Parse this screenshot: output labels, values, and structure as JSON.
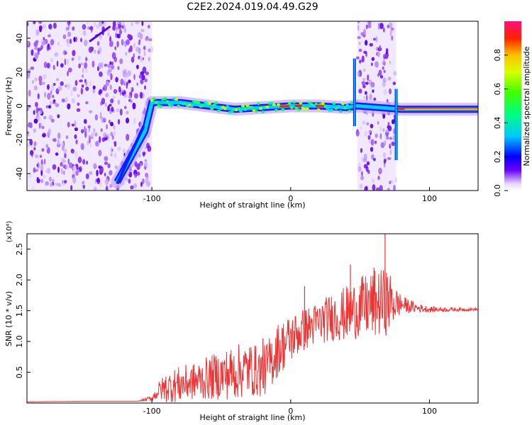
{
  "title": "C2E2.2024.019.04.49.G29",
  "chart_data": [
    {
      "type": "heatmap",
      "xlabel": "Height of straight line (km)",
      "ylabel": "Frequency (Hz)",
      "xlim": [
        -190,
        135
      ],
      "ylim": [
        -50,
        50
      ],
      "xticks": [
        "-100",
        "0",
        "100"
      ],
      "yticks": [
        "-40",
        "-20",
        "0",
        "20",
        "40"
      ],
      "colorbar": {
        "label": "Normalized spectral amplitude",
        "range": [
          0,
          1
        ],
        "ticks": [
          "0.0",
          "0.2",
          "0.4",
          "0.6",
          "0.8"
        ]
      },
      "signal_line": [
        {
          "x": -125,
          "y": -45
        },
        {
          "x": -105,
          "y": -15
        },
        {
          "x": -100,
          "y": 2
        },
        {
          "x": -80,
          "y": 2
        },
        {
          "x": -60,
          "y": 0
        },
        {
          "x": -40,
          "y": -2
        },
        {
          "x": -20,
          "y": -1
        },
        {
          "x": 0,
          "y": 0
        },
        {
          "x": 20,
          "y": 0
        },
        {
          "x": 40,
          "y": -1
        },
        {
          "x": 48,
          "y": 0
        },
        {
          "x": 80,
          "y": -2
        },
        {
          "x": 100,
          "y": -2
        },
        {
          "x": 135,
          "y": -2
        }
      ],
      "noise_regions": [
        [
          -190,
          -100
        ],
        [
          48,
          76
        ]
      ]
    },
    {
      "type": "line",
      "xlabel": "Height of straight line (km)",
      "ylabel": "SNR (10 * v/v)",
      "y_multiplier": "(x10⁴)",
      "xlim": [
        -190,
        135
      ],
      "ylim": [
        0,
        2.75
      ],
      "xticks": [
        "-100",
        "0",
        "100"
      ],
      "yticks": [
        "0.5",
        "1.0",
        "1.5",
        "2.0",
        "2.5"
      ],
      "color": "#ee3333",
      "series": [
        {
          "x": [
            -190,
            -150,
            -110,
            -100,
            -95,
            -90,
            -80,
            -70,
            -60,
            -50,
            -40,
            -30,
            -20,
            -15,
            -10,
            0,
            10,
            20,
            30,
            40,
            50,
            60,
            70,
            75,
            80,
            90,
            100,
            110,
            120,
            135
          ],
          "y": [
            0.02,
            0.03,
            0.03,
            0.08,
            0.2,
            0.25,
            0.3,
            0.35,
            0.4,
            0.45,
            0.5,
            0.55,
            0.5,
            0.65,
            0.85,
            1.05,
            1.2,
            1.3,
            1.4,
            1.45,
            1.55,
            1.6,
            1.65,
            1.62,
            1.6,
            1.55,
            1.52,
            1.52,
            1.52,
            1.52
          ],
          "noise_amplitude": [
            0,
            0,
            0,
            0.05,
            0.15,
            0.25,
            0.3,
            0.3,
            0.35,
            0.4,
            0.45,
            0.45,
            0.4,
            0.45,
            0.45,
            0.4,
            0.35,
            0.35,
            0.4,
            0.45,
            0.5,
            0.55,
            0.55,
            0.3,
            0.15,
            0.08,
            0.05,
            0.04,
            0.03,
            0.02
          ],
          "peaks": [
            {
              "x": 68,
              "y": 2.75
            },
            {
              "x": 43,
              "y": 2.25
            },
            {
              "x": 60,
              "y": 2.2
            },
            {
              "x": 10,
              "y": 1.9
            },
            {
              "x": -20,
              "y": 1.05
            }
          ]
        }
      ]
    }
  ]
}
